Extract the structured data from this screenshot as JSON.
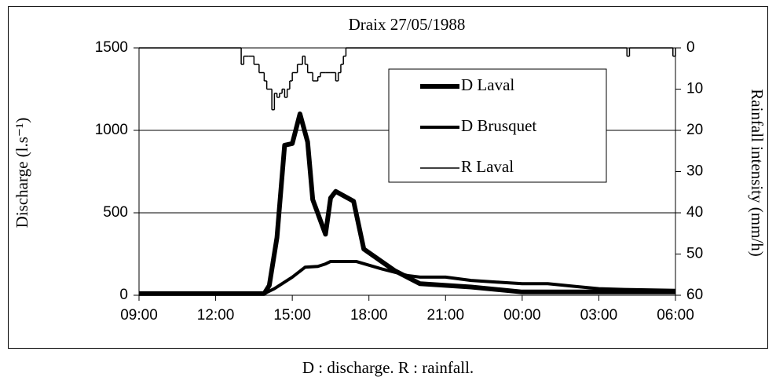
{
  "chart_data": {
    "type": "line",
    "title": "Draix 27/05/1988",
    "y_label": "Discharge (l.s⁻¹)",
    "y2_label": "Rainfall intensity (mm/h)",
    "caption": "D : discharge. R : rainfall.",
    "xlim": [
      9,
      30
    ],
    "xticks": [
      {
        "value": 9,
        "label": "09:00"
      },
      {
        "value": 12,
        "label": "12:00"
      },
      {
        "value": 15,
        "label": "15:00"
      },
      {
        "value": 18,
        "label": "18:00"
      },
      {
        "value": 21,
        "label": "21:00"
      },
      {
        "value": 24,
        "label": "00:00"
      },
      {
        "value": 27,
        "label": "03:00"
      },
      {
        "value": 30,
        "label": "06:00"
      }
    ],
    "ylim": [
      0,
      1500
    ],
    "yticks": [
      0,
      500,
      1000,
      1500
    ],
    "y2lim": [
      60,
      0
    ],
    "y2ticks": [
      0,
      10,
      20,
      30,
      40,
      50,
      60
    ],
    "grid": true,
    "legend": "top",
    "series": [
      {
        "name": "D Laval",
        "color": "#000000",
        "x": [
          9,
          13.9,
          14.1,
          14.4,
          14.7,
          15.0,
          15.3,
          15.6,
          15.8,
          16.3,
          16.5,
          16.7,
          17.4,
          17.8,
          19.0,
          20.0,
          22.0,
          24.0,
          27.0,
          30.0
        ],
        "values": [
          10,
          10,
          60,
          350,
          910,
          920,
          1100,
          930,
          580,
          370,
          590,
          630,
          570,
          280,
          150,
          70,
          50,
          20,
          20,
          20
        ]
      },
      {
        "name": "D Brusquet",
        "color": "#000000",
        "x": [
          9,
          13.9,
          14.3,
          15.0,
          15.5,
          16.0,
          16.3,
          16.5,
          17.5,
          18.5,
          19.5,
          20.0,
          21.0,
          22.0,
          23.0,
          24.0,
          25.0,
          26.0,
          27.0,
          28.0,
          30.0
        ],
        "values": [
          10,
          10,
          40,
          110,
          170,
          175,
          190,
          205,
          205,
          160,
          120,
          110,
          110,
          90,
          80,
          70,
          70,
          55,
          40,
          35,
          30
        ]
      },
      {
        "name": "R Laval",
        "color": "#000000",
        "axis": "y2",
        "step": true,
        "x": [
          9,
          13.0,
          13.1,
          13.3,
          13.5,
          13.7,
          13.9,
          14.0,
          14.2,
          14.3,
          14.4,
          14.5,
          14.6,
          14.7,
          14.8,
          14.9,
          15.0,
          15.2,
          15.4,
          15.5,
          15.6,
          15.8,
          16.0,
          16.1,
          16.3,
          16.5,
          16.7,
          16.8,
          16.9,
          17.0,
          17.1,
          28.1,
          28.2,
          29.9,
          30.0
        ],
        "values": [
          0,
          4,
          2,
          2,
          4,
          6,
          8,
          10,
          15,
          11,
          12,
          11,
          10,
          12,
          10,
          8,
          6,
          4,
          2,
          4,
          6,
          8,
          7,
          6,
          6,
          6,
          8,
          6,
          4,
          2,
          0,
          2,
          0,
          2,
          0
        ]
      }
    ]
  }
}
